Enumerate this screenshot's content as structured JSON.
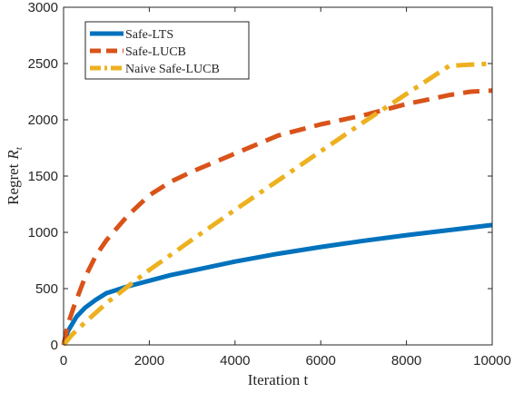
{
  "chart_data": {
    "type": "line",
    "xlabel": "Iteration t",
    "ylabel": "Regret",
    "ylabel_symbol": "R",
    "ylabel_subscript": "t",
    "xlim": [
      0,
      10000
    ],
    "ylim": [
      0,
      3000
    ],
    "xticks": [
      0,
      2000,
      4000,
      6000,
      8000,
      10000
    ],
    "yticks": [
      0,
      500,
      1000,
      1500,
      2000,
      2500,
      3000
    ],
    "xtick_labels": [
      "0",
      "2000",
      "4000",
      "6000",
      "8000",
      "10000"
    ],
    "ytick_labels": [
      "0",
      "500",
      "1000",
      "1500",
      "2000",
      "2500",
      "3000"
    ],
    "grid": false,
    "legend_position": "top-left",
    "series": [
      {
        "name": "Safe-LTS",
        "color": "#0072BD",
        "style": "solid",
        "x": [
          0,
          100,
          300,
          500,
          750,
          1000,
          1500,
          2000,
          2500,
          3000,
          4000,
          5000,
          6000,
          7000,
          8000,
          9000,
          10000
        ],
        "y": [
          0,
          120,
          250,
          330,
          400,
          460,
          520,
          570,
          620,
          660,
          740,
          810,
          870,
          925,
          975,
          1020,
          1065
        ]
      },
      {
        "name": "Safe-LUCB",
        "color": "#D95319",
        "style": "dashed",
        "x": [
          0,
          100,
          250,
          500,
          750,
          1000,
          1250,
          1500,
          2000,
          2500,
          3000,
          3500,
          4000,
          4500,
          5000,
          5500,
          6000,
          6500,
          7000,
          7500,
          8000,
          8500,
          9000,
          9500,
          10000
        ],
        "y": [
          0,
          180,
          350,
          600,
          790,
          930,
          1040,
          1150,
          1330,
          1450,
          1540,
          1620,
          1700,
          1780,
          1860,
          1910,
          1960,
          2000,
          2040,
          2090,
          2140,
          2180,
          2220,
          2250,
          2260
        ]
      },
      {
        "name": "Naive Safe-LUCB",
        "color": "#EDB120",
        "style": "dashdot",
        "x": [
          0,
          200,
          500,
          1000,
          1500,
          2000,
          3000,
          4000,
          5000,
          6000,
          7000,
          8000,
          9000,
          10000
        ],
        "y": [
          0,
          90,
          200,
          370,
          520,
          665,
          935,
          1200,
          1460,
          1720,
          1980,
          2230,
          2480,
          2500
        ]
      }
    ]
  }
}
